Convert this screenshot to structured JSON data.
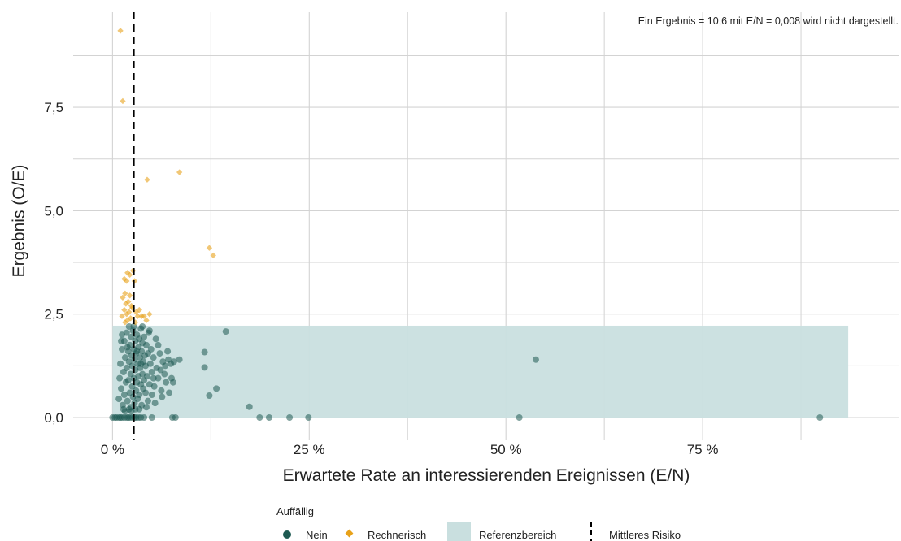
{
  "chart_data": {
    "type": "scatter",
    "title": "",
    "note": "Ein Ergebnis = 10,6 mit E/N = 0,008 wird nicht dargestellt.",
    "xlabel": "Erwartete Rate an interessierenden Ereignissen (E/N)",
    "ylabel": "Ergebnis (O/E)",
    "xlim": [
      -0.05,
      1.0
    ],
    "ylim": [
      -0.55,
      9.8
    ],
    "x_ticks": [
      {
        "value": 0,
        "label": "0 %"
      },
      {
        "value": 0.25,
        "label": "25 %"
      },
      {
        "value": 0.5,
        "label": "50 %"
      },
      {
        "value": 0.75,
        "label": "75 %"
      }
    ],
    "y_ticks": [
      {
        "value": 0,
        "label": "0,0"
      },
      {
        "value": 2.5,
        "label": "2,5"
      },
      {
        "value": 5,
        "label": "5,0"
      },
      {
        "value": 7.5,
        "label": "7,5"
      }
    ],
    "x_minor_grid": [
      0.125,
      0.375,
      0.625,
      0.875
    ],
    "y_minor_grid": [
      1.25,
      3.75,
      6.25,
      8.75
    ],
    "grid": true,
    "reference_range": {
      "label": "Referenzbereich",
      "x": [
        0,
        0.935
      ],
      "y": [
        0,
        2.22
      ],
      "color": "#c9dfdf"
    },
    "mean_risk": {
      "label": "Mittleres Risiko",
      "x": 0.027
    },
    "legend": {
      "title": "Auffällig",
      "position": "bottom",
      "items": [
        {
          "label": "Nein",
          "symbol": "circle",
          "color": "#1e5a52"
        },
        {
          "label": "Rechnerisch",
          "symbol": "diamond",
          "color": "#e8a21a"
        },
        {
          "label": "Referenzbereich",
          "symbol": "rect",
          "color": "#c9dfdf"
        },
        {
          "label": "Mittleres Risiko",
          "symbol": "dashed-line",
          "color": "#000000"
        }
      ]
    },
    "series": [
      {
        "name": "Nein",
        "marker": "circle",
        "color": "#1e5a52",
        "points": [
          [
            0.0,
            0.0
          ],
          [
            0.003,
            0.0
          ],
          [
            0.005,
            0.0
          ],
          [
            0.008,
            0.0
          ],
          [
            0.01,
            0.0
          ],
          [
            0.012,
            0.0
          ],
          [
            0.015,
            0.0
          ],
          [
            0.018,
            0.0
          ],
          [
            0.02,
            0.0
          ],
          [
            0.022,
            0.0
          ],
          [
            0.025,
            0.0
          ],
          [
            0.028,
            0.0
          ],
          [
            0.03,
            0.0
          ],
          [
            0.033,
            0.0
          ],
          [
            0.036,
            0.0
          ],
          [
            0.04,
            0.0
          ],
          [
            0.05,
            0.0
          ],
          [
            0.076,
            0.0
          ],
          [
            0.08,
            0.0
          ],
          [
            0.187,
            0.0
          ],
          [
            0.199,
            0.0
          ],
          [
            0.225,
            0.0
          ],
          [
            0.249,
            0.0
          ],
          [
            0.517,
            0.0
          ],
          [
            0.899,
            0.0
          ],
          [
            0.008,
            0.45
          ],
          [
            0.009,
            0.95
          ],
          [
            0.01,
            1.3
          ],
          [
            0.011,
            0.7
          ],
          [
            0.012,
            1.65
          ],
          [
            0.013,
            0.3
          ],
          [
            0.014,
            1.1
          ],
          [
            0.015,
            1.85
          ],
          [
            0.015,
            0.55
          ],
          [
            0.016,
            1.45
          ],
          [
            0.017,
            0.85
          ],
          [
            0.018,
            2.05
          ],
          [
            0.018,
            1.2
          ],
          [
            0.019,
            0.4
          ],
          [
            0.02,
            1.6
          ],
          [
            0.02,
            0.9
          ],
          [
            0.021,
            2.2
          ],
          [
            0.021,
            1.35
          ],
          [
            0.022,
            0.6
          ],
          [
            0.022,
            1.75
          ],
          [
            0.023,
            1.05
          ],
          [
            0.023,
            0.25
          ],
          [
            0.024,
            1.95
          ],
          [
            0.024,
            1.5
          ],
          [
            0.025,
            0.75
          ],
          [
            0.025,
            1.25
          ],
          [
            0.026,
            2.1
          ],
          [
            0.026,
            0.5
          ],
          [
            0.027,
            1.65
          ],
          [
            0.027,
            0.95
          ],
          [
            0.028,
            1.4
          ],
          [
            0.028,
            0.35
          ],
          [
            0.029,
            1.85
          ],
          [
            0.029,
            1.15
          ],
          [
            0.03,
            0.65
          ],
          [
            0.03,
            1.55
          ],
          [
            0.031,
            2.0
          ],
          [
            0.031,
            0.85
          ],
          [
            0.032,
            1.3
          ],
          [
            0.032,
            0.45
          ],
          [
            0.033,
            1.7
          ],
          [
            0.033,
            1.0
          ],
          [
            0.034,
            1.9
          ],
          [
            0.034,
            0.55
          ],
          [
            0.035,
            1.45
          ],
          [
            0.035,
            1.2
          ],
          [
            0.036,
            0.8
          ],
          [
            0.036,
            2.15
          ],
          [
            0.037,
            1.6
          ],
          [
            0.037,
            0.3
          ],
          [
            0.038,
            1.05
          ],
          [
            0.038,
            1.8
          ],
          [
            0.039,
            0.7
          ],
          [
            0.039,
            1.35
          ],
          [
            0.04,
            1.95
          ],
          [
            0.04,
            0.9
          ],
          [
            0.041,
            1.5
          ],
          [
            0.042,
            0.6
          ],
          [
            0.042,
            1.25
          ],
          [
            0.043,
            1.75
          ],
          [
            0.044,
            1.0
          ],
          [
            0.045,
            0.4
          ],
          [
            0.045,
            1.55
          ],
          [
            0.046,
            2.05
          ],
          [
            0.047,
            0.8
          ],
          [
            0.048,
            1.3
          ],
          [
            0.049,
            1.65
          ],
          [
            0.05,
            0.55
          ],
          [
            0.05,
            1.1
          ],
          [
            0.052,
            1.45
          ],
          [
            0.053,
            0.75
          ],
          [
            0.055,
            1.9
          ],
          [
            0.056,
            1.2
          ],
          [
            0.058,
            0.95
          ],
          [
            0.06,
            1.55
          ],
          [
            0.062,
            0.65
          ],
          [
            0.064,
            1.35
          ],
          [
            0.066,
            1.05
          ],
          [
            0.068,
            0.85
          ],
          [
            0.07,
            1.6
          ],
          [
            0.072,
            0.6
          ],
          [
            0.074,
            1.3
          ],
          [
            0.075,
            0.95
          ],
          [
            0.077,
            0.85
          ],
          [
            0.085,
            1.4
          ],
          [
            0.067,
            1.25
          ],
          [
            0.063,
            0.5
          ],
          [
            0.058,
            1.75
          ],
          [
            0.054,
            0.35
          ],
          [
            0.047,
            2.1
          ],
          [
            0.043,
            0.25
          ],
          [
            0.038,
            2.2
          ],
          [
            0.011,
            1.85
          ],
          [
            0.012,
            2.0
          ],
          [
            0.014,
            0.2
          ],
          [
            0.016,
            0.15
          ],
          [
            0.019,
            1.7
          ],
          [
            0.021,
            0.2
          ],
          [
            0.024,
            0.15
          ],
          [
            0.027,
            2.2
          ],
          [
            0.029,
            0.2
          ],
          [
            0.031,
            1.6
          ],
          [
            0.034,
            0.2
          ],
          [
            0.036,
            1.3
          ],
          [
            0.052,
            0.95
          ],
          [
            0.061,
            1.15
          ],
          [
            0.071,
            1.4
          ],
          [
            0.078,
            1.35
          ],
          [
            0.117,
            1.58
          ],
          [
            0.117,
            1.21
          ],
          [
            0.123,
            0.53
          ],
          [
            0.132,
            0.7
          ],
          [
            0.144,
            2.08
          ],
          [
            0.174,
            0.26
          ],
          [
            0.538,
            1.4
          ]
        ]
      },
      {
        "name": "Rechnerisch",
        "marker": "diamond",
        "color": "#e8a21a",
        "points": [
          [
            0.01,
            9.35
          ],
          [
            0.013,
            7.65
          ],
          [
            0.044,
            5.75
          ],
          [
            0.085,
            5.93
          ],
          [
            0.123,
            4.1
          ],
          [
            0.128,
            3.92
          ],
          [
            0.015,
            3.35
          ],
          [
            0.018,
            3.3
          ],
          [
            0.019,
            3.5
          ],
          [
            0.022,
            3.45
          ],
          [
            0.026,
            3.55
          ],
          [
            0.028,
            3.3
          ],
          [
            0.013,
            2.9
          ],
          [
            0.016,
            3.0
          ],
          [
            0.02,
            2.8
          ],
          [
            0.024,
            2.7
          ],
          [
            0.012,
            2.45
          ],
          [
            0.015,
            2.6
          ],
          [
            0.018,
            2.5
          ],
          [
            0.021,
            2.55
          ],
          [
            0.023,
            2.4
          ],
          [
            0.025,
            2.65
          ],
          [
            0.03,
            2.55
          ],
          [
            0.034,
            2.6
          ],
          [
            0.037,
            2.45
          ],
          [
            0.04,
            2.45
          ],
          [
            0.043,
            2.35
          ],
          [
            0.047,
            2.5
          ],
          [
            0.016,
            2.3
          ],
          [
            0.019,
            2.35
          ],
          [
            0.029,
            2.3
          ],
          [
            0.032,
            2.45
          ],
          [
            0.022,
            2.95
          ],
          [
            0.017,
            2.75
          ]
        ]
      }
    ]
  }
}
